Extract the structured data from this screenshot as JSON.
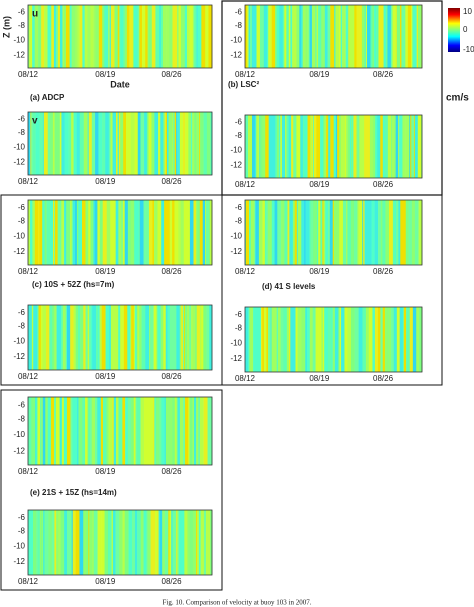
{
  "colorbar": {
    "ticks": [
      "10",
      "0",
      "-10"
    ],
    "unit": "cm/s"
  },
  "panels": [
    {
      "label": "(a) ADCP",
      "plots": [
        {
          "component": "u",
          "y_label": "Z (m)",
          "x_label": "Date",
          "yticks": [
            "-6",
            "-8",
            "-10",
            "-12"
          ],
          "xticks": [
            "08/12",
            "08/19",
            "08/26"
          ]
        },
        {
          "component": "v",
          "yticks": [
            "-6",
            "-8",
            "-10",
            "-12"
          ],
          "xticks": [
            "08/12",
            "08/19",
            "08/26"
          ]
        }
      ]
    },
    {
      "label": "(b) LSC²",
      "plots": [
        {
          "yticks": [
            "-6",
            "-8",
            "-10",
            "-12"
          ],
          "xticks": [
            "08/12",
            "08/19",
            "08/26"
          ]
        },
        {
          "yticks": [
            "-6",
            "-8",
            "-10",
            "-12"
          ],
          "xticks": [
            "08/12",
            "08/19",
            "08/26"
          ]
        }
      ]
    },
    {
      "label": "(c) 10S + 52Z (hs=7m)",
      "plots": [
        {
          "yticks": [
            "-6",
            "-8",
            "-10",
            "-12"
          ],
          "xticks": [
            "08/12",
            "08/19",
            "08/26"
          ]
        },
        {
          "yticks": [
            "-6",
            "-8",
            "-10",
            "-12"
          ],
          "xticks": [
            "08/12",
            "08/19",
            "08/26"
          ]
        }
      ]
    },
    {
      "label": "(d) 41 S levels",
      "plots": [
        {
          "yticks": [
            "-6",
            "-8",
            "-10",
            "-12"
          ],
          "xticks": [
            "08/12",
            "08/19",
            "08/26"
          ]
        },
        {
          "yticks": [
            "-6",
            "-8",
            "-10",
            "-12"
          ],
          "xticks": [
            "08/12",
            "08/19",
            "08/26"
          ]
        }
      ]
    },
    {
      "label": "(e) 21S + 15Z (hs=14m)",
      "plots": [
        {
          "yticks": [
            "-6",
            "-8",
            "-10",
            "-12"
          ],
          "xticks": [
            "08/12",
            "08/19",
            "08/26"
          ]
        },
        {
          "yticks": [
            "-6",
            "-8",
            "-10",
            "-12"
          ],
          "xticks": [
            "08/12",
            "08/19",
            "08/26"
          ]
        }
      ]
    }
  ],
  "caption": "Fig. 10. Comparison of velocity at buoy 103 in 2007."
}
